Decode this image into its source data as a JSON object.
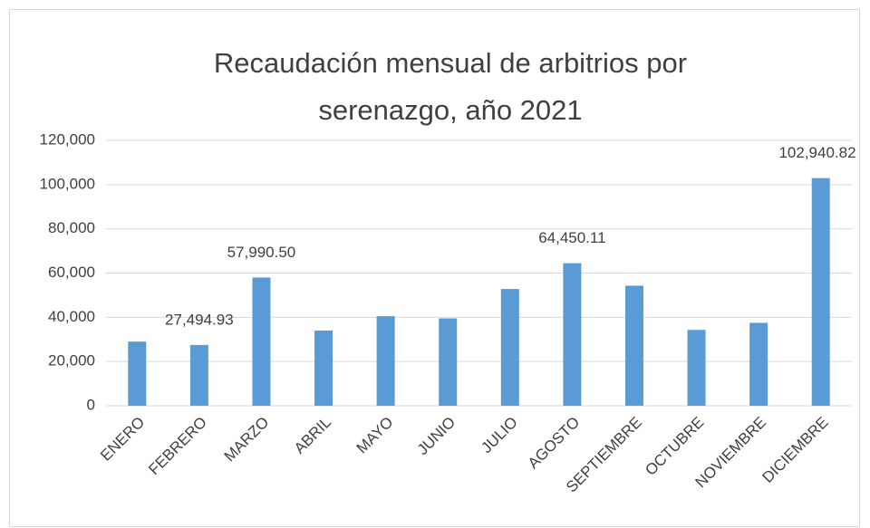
{
  "chart_data": {
    "type": "bar",
    "title": "Recaudación mensual de arbitrios por serenazgo, año 2021",
    "categories": [
      "ENERO",
      "FEBRERO",
      "MARZO",
      "ABRIL",
      "MAYO",
      "JUNIO",
      "JULIO",
      "AGOSTO",
      "SEPTIEMBRE",
      "OCTUBRE",
      "NOVIEMBRE",
      "DICIEMBRE"
    ],
    "values": [
      29000,
      27494.93,
      57990.5,
      34000,
      40500,
      39500,
      52800,
      64450.11,
      54300,
      34300,
      37500,
      102940.82
    ],
    "value_labels": [
      null,
      "27,494.93",
      "57,990.50",
      null,
      null,
      null,
      null,
      "64,450.11",
      null,
      null,
      null,
      "102,940.82"
    ],
    "color": "#5b9bd5",
    "ylim": [
      0,
      120000
    ],
    "yticks": [
      0,
      {
        "value": 20000,
        "label": "20,000"
      },
      {
        "value": 40000,
        "label": "40,000"
      },
      {
        "value": 60000,
        "label": "60,000"
      },
      {
        "value": 80000,
        "label": "80,000"
      },
      {
        "value": 100000,
        "label": "100,000"
      },
      {
        "value": 120000,
        "label": "120,000"
      }
    ],
    "grid": true
  }
}
